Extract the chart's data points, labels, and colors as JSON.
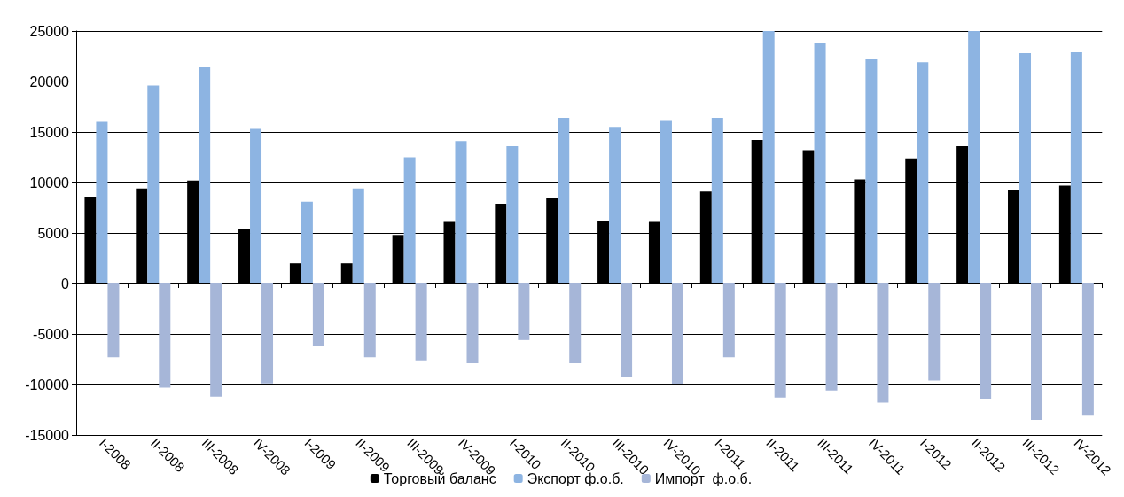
{
  "chart_data": {
    "type": "bar",
    "categories": [
      "I-2008",
      "II-2008",
      "III-2008",
      "IV-2008",
      "I-2009",
      "II-2009",
      "III-2009",
      "IV-2009",
      "I-2010",
      "II-2010",
      "III-2010",
      "IV-2010",
      "I-2011",
      "II-2011",
      "III-2011",
      "IV-2011",
      "I-2012",
      "II-2012",
      "III-2012",
      "IV-2012"
    ],
    "series": [
      {
        "name": "Торговый баланс",
        "color": "#000000",
        "values": [
          8600,
          9400,
          10200,
          5400,
          2000,
          2000,
          4800,
          6100,
          7900,
          8500,
          6200,
          6100,
          9100,
          14200,
          13200,
          10300,
          12400,
          13600,
          9200,
          9700
        ]
      },
      {
        "name": "Экспорт ф.о.б.",
        "color": "#8db4e2",
        "values": [
          16000,
          19600,
          21400,
          15300,
          8100,
          9400,
          12500,
          14100,
          13600,
          16400,
          15500,
          16100,
          16400,
          25000,
          23800,
          22200,
          21900,
          25000,
          22800,
          22900
        ]
      },
      {
        "name": "Импорт  ф.о.б.",
        "color": "#a6b6d8",
        "values": [
          -7300,
          -10300,
          -11200,
          -9900,
          -6200,
          -7300,
          -7600,
          -7900,
          -5600,
          -7900,
          -9300,
          -10000,
          -7300,
          -11300,
          -10600,
          -11800,
          -9600,
          -11400,
          -13500,
          -13100
        ]
      }
    ],
    "ylim": [
      -15000,
      25000
    ],
    "yticks": [
      -15000,
      -10000,
      -5000,
      0,
      5000,
      10000,
      15000,
      20000,
      25000
    ],
    "grid": "y",
    "legend": "bottom"
  }
}
